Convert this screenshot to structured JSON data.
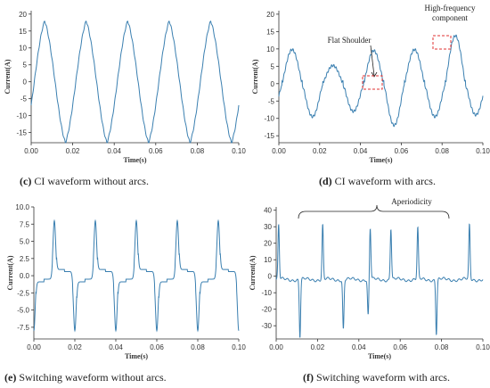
{
  "captions": [
    {
      "letter": "(c)",
      "text": " CI waveform without arcs."
    },
    {
      "letter": "(d)",
      "text": " CI waveform with arcs."
    },
    {
      "letter": "(e)",
      "text": " Switching waveform without arcs."
    },
    {
      "letter": "(f)",
      "text": " Switching waveform with arcs."
    }
  ],
  "annotations": {
    "high_frequency": [
      "High-frequency",
      "component"
    ],
    "flat_shoulder": "Flat Shoulder",
    "aperiodicity": "Aperiodicity"
  },
  "chart_data": [
    {
      "type": "line",
      "xlabel": "Time(s)",
      "ylabel": "Current(A)",
      "xlim": [
        0,
        0.1
      ],
      "ylim": [
        -18,
        21
      ],
      "xticks": [
        "0.00",
        "0.02",
        "0.04",
        "0.06",
        "0.08",
        "0.10"
      ],
      "yticks": [
        "20",
        "15",
        "10",
        "5",
        "0",
        "-5",
        "-10",
        "-15"
      ],
      "ytick_values": [
        20,
        15,
        10,
        5,
        0,
        -5,
        -10,
        -15
      ],
      "xtick_values": [
        0,
        0.02,
        0.04,
        0.06,
        0.08,
        0.1
      ],
      "series": [
        {
          "kind": "ci",
          "amplitude": 18,
          "period": 0.02,
          "phase": 0.0065
        }
      ]
    },
    {
      "type": "line",
      "xlabel": "Time(s)",
      "ylabel": "Current(A)",
      "xlim": [
        0,
        0.1
      ],
      "ylim": [
        -17,
        21
      ],
      "xticks": [
        "0.00",
        "0.02",
        "0.04",
        "0.06",
        "0.08",
        "0.10"
      ],
      "yticks": [
        "20",
        "15",
        "10",
        "5",
        "0",
        "-5",
        "-10",
        "-15"
      ],
      "ytick_values": [
        20,
        15,
        10,
        5,
        0,
        -5,
        -10,
        -15
      ],
      "xtick_values": [
        0,
        0.02,
        0.04,
        0.06,
        0.08,
        0.1
      ],
      "series": [
        {
          "kind": "ci_arc",
          "peaks": [
            9.8,
            5.2,
            9.5,
            9.8,
            13.8
          ],
          "troughs": [
            -9.5,
            -8.0,
            -12.0,
            -9.5,
            -9.0
          ]
        }
      ]
    },
    {
      "type": "line",
      "xlabel": "Time(s)",
      "ylabel": "Current(A)",
      "xlim": [
        0,
        0.1
      ],
      "ylim": [
        -9.2,
        10
      ],
      "xticks": [
        "0.00",
        "0.02",
        "0.04",
        "0.06",
        "0.08",
        "0.10"
      ],
      "yticks": [
        "10.0",
        "7.5",
        "5.0",
        "2.5",
        "0.0",
        "-2.5",
        "-5.0",
        "-7.5"
      ],
      "ytick_values": [
        10,
        7.5,
        5,
        2.5,
        0,
        -2.5,
        -5,
        -7.5
      ],
      "xtick_values": [
        0,
        0.02,
        0.04,
        0.06,
        0.08,
        0.1
      ],
      "series": [
        {
          "kind": "switch",
          "peak": 8.0,
          "trough": -8.0,
          "baseline_pos": -0.5,
          "baseline_neg": 0.7
        }
      ]
    },
    {
      "type": "line",
      "xlabel": "Time(s)",
      "ylabel": "Current(A)",
      "xlim": [
        0,
        0.1
      ],
      "ylim": [
        -38,
        42
      ],
      "xticks": [
        "0.00",
        "0.02",
        "0.04",
        "0.06",
        "0.08",
        "0.10"
      ],
      "yticks": [
        "40",
        "30",
        "20",
        "10",
        "0",
        "-10",
        "-20",
        "-30"
      ],
      "ytick_values": [
        40,
        30,
        20,
        10,
        0,
        -10,
        -20,
        -30
      ],
      "xtick_values": [
        0,
        0.02,
        0.04,
        0.06,
        0.08,
        0.1
      ],
      "series": [
        {
          "kind": "switch_arc",
          "spikes": [
            [
              0.0012,
              33
            ],
            [
              0.0115,
              -35
            ],
            [
              0.0225,
              33
            ],
            [
              0.0325,
              -30
            ],
            [
              0.0445,
              -22
            ],
            [
              0.0455,
              31
            ],
            [
              0.0555,
              31
            ],
            [
              0.0685,
              31
            ],
            [
              0.0775,
              -33
            ],
            [
              0.0935,
              33
            ]
          ]
        }
      ]
    }
  ]
}
